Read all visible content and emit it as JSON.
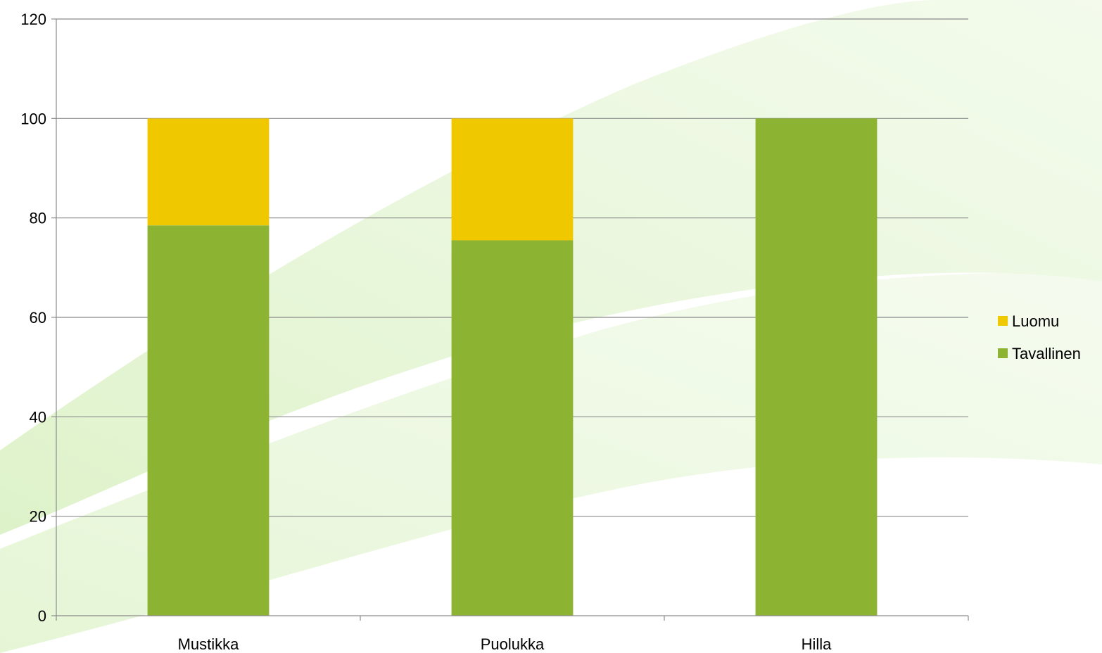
{
  "chart_data": {
    "type": "bar",
    "stacked": true,
    "categories": [
      "Mustikka",
      "Puolukka",
      "Hilla"
    ],
    "series": [
      {
        "name": "Tavallinen",
        "color": "#8db333",
        "values": [
          78.5,
          75.5,
          100
        ]
      },
      {
        "name": "Luomu",
        "color": "#f0c800",
        "values": [
          21.5,
          24.5,
          0
        ]
      }
    ],
    "ylim": [
      0,
      120
    ],
    "yticks": [
      "0",
      "20",
      "40",
      "60",
      "80",
      "100",
      "120"
    ],
    "grid": true,
    "legend_position": "right",
    "legend_order": [
      "Luomu",
      "Tavallinen"
    ],
    "title": "",
    "xlabel": "",
    "ylabel": ""
  },
  "background": {
    "style": "light green diagonal swooshes",
    "colors": [
      "#ddf2c8",
      "#e8f6d8"
    ]
  }
}
